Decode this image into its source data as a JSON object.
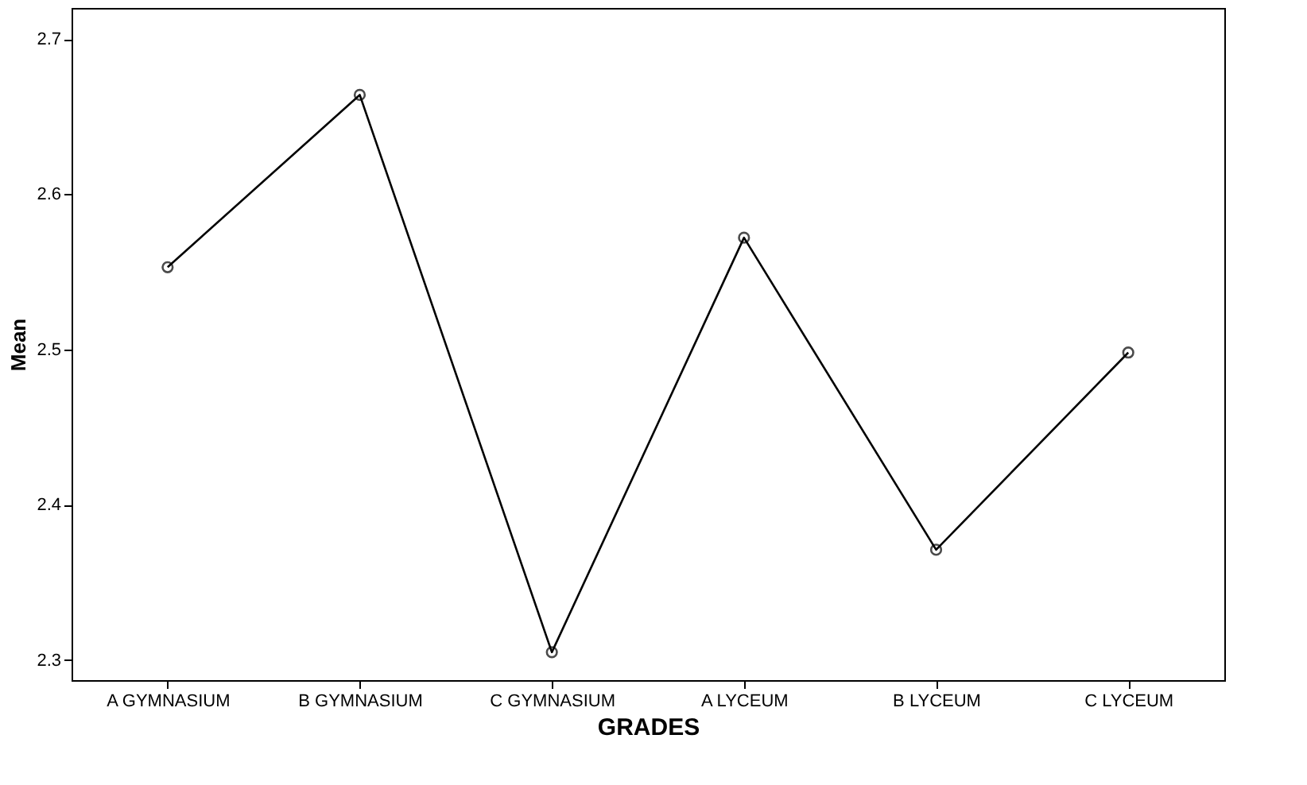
{
  "chart_data": {
    "type": "line",
    "xlabel": "GRADES",
    "ylabel": "Mean",
    "categories": [
      "A GYMNASIUM",
      "B GYMNASIUM",
      "C GYMNASIUM",
      "A LYCEUM",
      "B LYCEUM",
      "C LYCEUM"
    ],
    "series": [
      {
        "color": "#000000",
        "values": [
          2.553,
          2.664,
          2.305,
          2.572,
          2.371,
          2.498
        ]
      }
    ],
    "ylim": [
      2.287,
      2.72
    ],
    "yticks": [
      2.3,
      2.4,
      2.5,
      2.6,
      2.7
    ],
    "grid": false,
    "marker": "circle",
    "line_style": "solid"
  }
}
